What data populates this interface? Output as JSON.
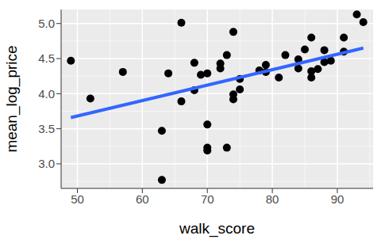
{
  "chart_data": {
    "type": "scatter",
    "x_label": "walk_score",
    "y_label": "mean_log_price",
    "x": [
      49,
      52,
      57,
      63,
      63,
      64,
      66,
      66,
      68,
      68,
      69,
      70,
      70,
      70,
      70,
      72,
      72,
      73,
      73,
      74,
      74,
      74,
      75,
      75,
      78,
      79,
      79,
      81,
      82,
      84,
      84,
      85,
      86,
      86,
      86,
      87,
      88,
      88,
      89,
      91,
      91,
      93,
      94
    ],
    "values": [
      4.47,
      3.93,
      4.31,
      3.47,
      2.77,
      4.29,
      5.01,
      3.89,
      4.44,
      4.05,
      4.27,
      4.29,
      3.56,
      3.23,
      3.19,
      4.36,
      4.43,
      4.55,
      3.23,
      4.88,
      3.92,
      3.99,
      4.06,
      4.21,
      4.33,
      4.41,
      4.31,
      4.23,
      4.55,
      4.36,
      4.49,
      4.63,
      4.8,
      4.23,
      4.32,
      4.35,
      4.62,
      4.45,
      4.47,
      4.8,
      4.6,
      5.13,
      5.02
    ],
    "color": "#000000",
    "marker": "circle",
    "fit": {
      "x": [
        49,
        94
      ],
      "values": [
        3.66,
        4.65
      ],
      "color": "#3366FF",
      "line_style": "solid"
    },
    "xlim": [
      47.5,
      95.5
    ],
    "ylim": [
      2.65,
      5.2
    ],
    "xticks": [
      50,
      60,
      70,
      80,
      90
    ],
    "yticks": [
      {
        "value": 3,
        "label": "3.0"
      },
      {
        "value": 3.5,
        "label": "3.5"
      },
      {
        "value": 4,
        "label": "4.0"
      },
      {
        "value": 4.5,
        "label": "4.5"
      },
      {
        "value": 5,
        "label": "5.0"
      }
    ],
    "grid": true
  }
}
